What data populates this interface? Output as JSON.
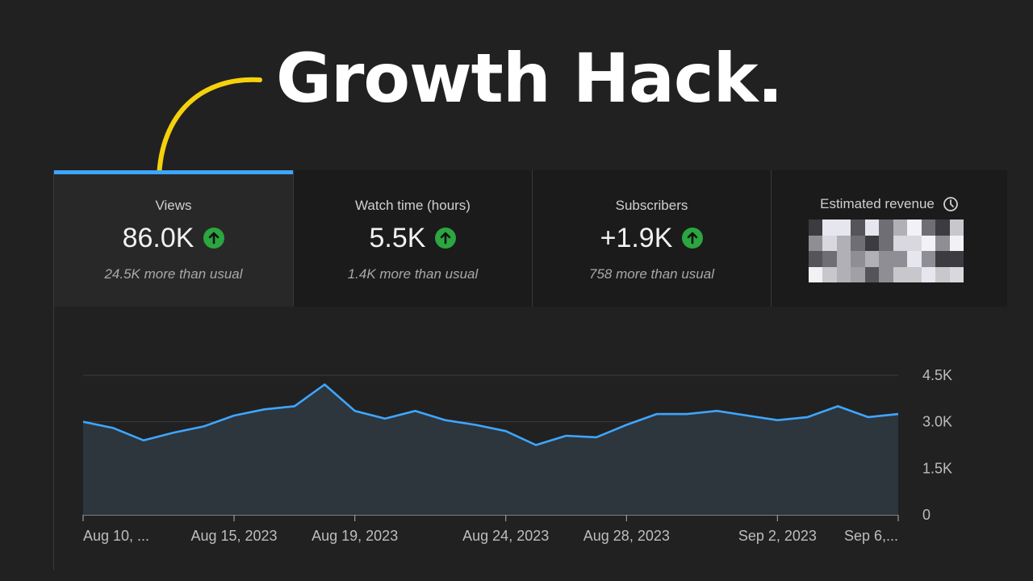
{
  "headline": "Growth Hack.",
  "accent_color": "#3ea6ff",
  "positive_color": "#2ba640",
  "annotation_arrow_color": "#f5d10d",
  "cards": [
    {
      "label": "Views",
      "value": "86.0K",
      "note": "24.5K more than usual",
      "trend_icon": "arrow-up-icon",
      "active": true
    },
    {
      "label": "Watch time (hours)",
      "value": "5.5K",
      "note": "1.4K more than usual",
      "trend_icon": "arrow-up-icon"
    },
    {
      "label": "Subscribers",
      "value": "+1.9K",
      "note": "758 more than usual",
      "trend_icon": "arrow-up-icon"
    },
    {
      "label": "Estimated revenue",
      "icon": "clock-icon",
      "value_hidden": "pixelated"
    }
  ],
  "chart_data": {
    "type": "area",
    "series": [
      {
        "values": [
          3000,
          2800,
          2400,
          2650,
          2850,
          3200,
          3400,
          3500,
          4200,
          3350,
          3100,
          3350,
          3050,
          2900,
          2700,
          2250,
          2550,
          2500,
          2900,
          3250,
          3250,
          3350,
          3200,
          3050,
          3150,
          3500,
          3150,
          3250
        ]
      }
    ],
    "x_tick_labels": [
      "Aug 10, ...",
      "Aug 15, 2023",
      "Aug 19, 2023",
      "Aug 24, 2023",
      "Aug 28, 2023",
      "Sep 2, 2023",
      "Sep 6,..."
    ],
    "y_tick_labels": [
      "4.5K",
      "3.0K",
      "1.5K",
      "0"
    ],
    "ylim": [
      0,
      4500
    ],
    "grid": true
  }
}
